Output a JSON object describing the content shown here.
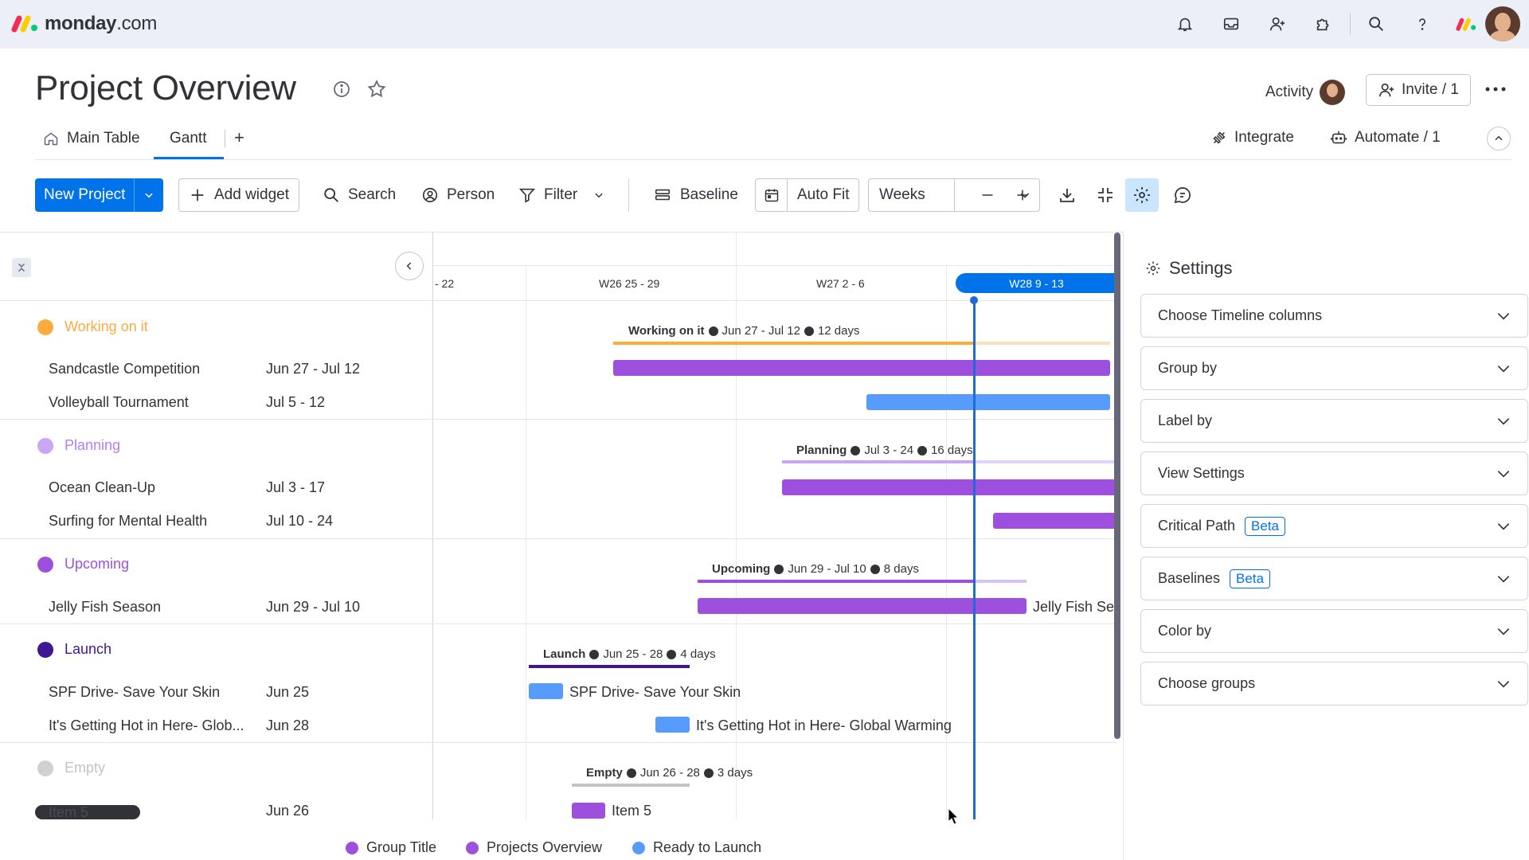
{
  "app": {
    "logo_name": "monday",
    "logo_suffix": ".com"
  },
  "board": {
    "title": "Project Overview",
    "activity_label": "Activity",
    "invite_label": "Invite / 1",
    "tabs": [
      {
        "label": "Main Table"
      },
      {
        "label": "Gantt"
      }
    ],
    "add_tab": "+",
    "integrate_label": "Integrate",
    "automate_label": "Automate / 1"
  },
  "toolbar": {
    "new_project": "New Project",
    "add_widget": "Add widget",
    "search": "Search",
    "person": "Person",
    "filter": "Filter",
    "baseline": "Baseline",
    "auto_fit": "Auto Fit",
    "zoom_value": "Weeks"
  },
  "timeline": {
    "weeks": [
      "- 22",
      "W26 25 - 29",
      "W27 2 - 6",
      "W28 9 - 13"
    ]
  },
  "groups": [
    {
      "name": "Working on it",
      "color": "#fdab3d",
      "summary_name": "Working on it",
      "summary_dates": "Jun 27 - Jul 12",
      "summary_days": "12 days",
      "items": [
        {
          "name": "Sandcastle Competition",
          "dates": "Jun 27 - Jul 12"
        },
        {
          "name": "Volleyball Tournament",
          "dates": "Jul 5 - 12"
        }
      ]
    },
    {
      "name": "Planning",
      "color": "#b580f3",
      "summary_name": "Planning",
      "summary_dates": "Jul 3 - 24",
      "summary_days": "16 days",
      "items": [
        {
          "name": "Ocean Clean-Up",
          "dates": "Jul 3 - 17"
        },
        {
          "name": "Surfing for Mental Health",
          "dates": "Jul 10 - 24"
        }
      ]
    },
    {
      "name": "Upcoming",
      "color": "#9d50dd",
      "summary_name": "Upcoming",
      "summary_dates": "Jun 29 - Jul 10",
      "summary_days": "8 days",
      "items": [
        {
          "name": "Jelly Fish Season",
          "dates": "Jun 29 - Jul 10",
          "bar_label": "Jelly Fish Se"
        }
      ]
    },
    {
      "name": "Launch",
      "color": "#401694",
      "summary_name": "Launch",
      "summary_dates": "Jun 25 - 28",
      "summary_days": "4 days",
      "items": [
        {
          "name": "SPF Drive- Save Your Skin",
          "dates": "Jun 25",
          "bar_label": "SPF Drive- Save Your Skin"
        },
        {
          "name": "It's Getting Hot in Here- Glob...",
          "dates": "Jun 28",
          "bar_label": "It's Getting Hot in Here- Global Warming"
        }
      ]
    },
    {
      "name": "Empty",
      "color": "#c4c4c4",
      "summary_name": "Empty",
      "summary_dates": "Jun 26 - 28",
      "summary_days": "3 days",
      "items": [
        {
          "name": "Item 5",
          "dates": "Jun 26",
          "bar_label": "Item 5"
        }
      ]
    }
  ],
  "settings": {
    "title": "Settings",
    "items": [
      {
        "label": "Choose Timeline columns"
      },
      {
        "label": "Group by"
      },
      {
        "label": "Label by"
      },
      {
        "label": "View Settings"
      },
      {
        "label": "Critical Path",
        "badge": "Beta"
      },
      {
        "label": "Baselines",
        "badge": "Beta"
      },
      {
        "label": "Color by"
      },
      {
        "label": "Choose groups"
      }
    ]
  },
  "legend": [
    {
      "label": "Group Title",
      "color": "#9d50dd"
    },
    {
      "label": "Projects Overview",
      "color": "#9d50dd"
    },
    {
      "label": "Ready to Launch",
      "color": "#579bfc"
    }
  ],
  "colors": {
    "accent": "#0073ea",
    "purple_bar": "#9d50dd",
    "blue_bar": "#579bfc",
    "today_line": "#1f6bd6"
  }
}
